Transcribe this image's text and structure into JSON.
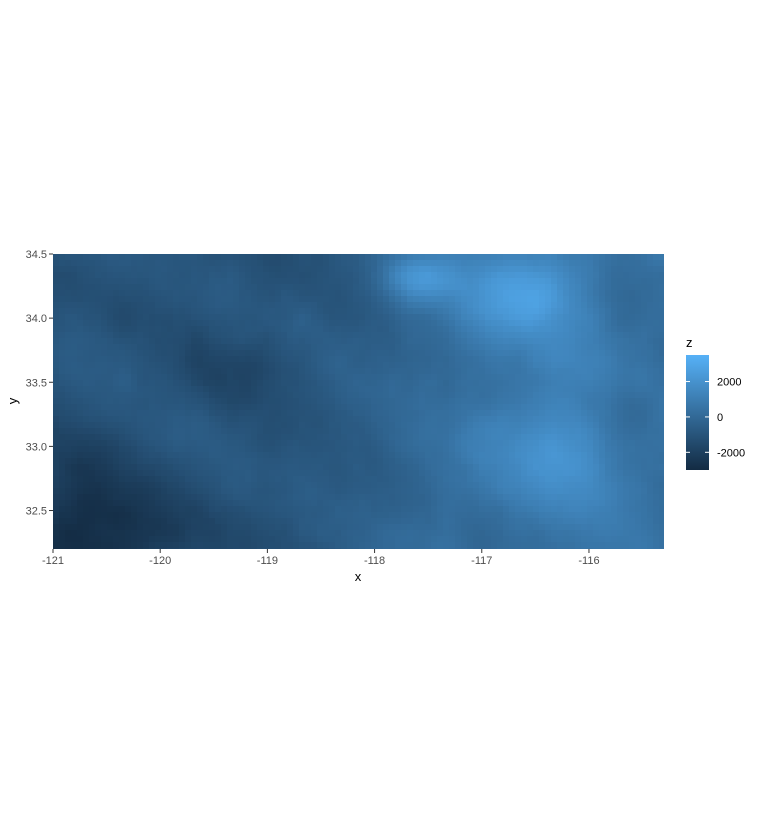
{
  "chart_data": {
    "type": "heatmap",
    "title": "",
    "xlabel": "x",
    "ylabel": "y",
    "xlim": [
      -121,
      -115.3
    ],
    "ylim": [
      32.2,
      34.5
    ],
    "x_ticks": [
      "-121",
      "-120",
      "-119",
      "-118",
      "-117",
      "-116"
    ],
    "y_ticks": [
      "32.5",
      "33.0",
      "33.5",
      "34.0",
      "34.5"
    ],
    "x_tick_values": [
      -121,
      -120,
      -119,
      -118,
      -117,
      -116
    ],
    "y_tick_values": [
      32.5,
      33.0,
      33.5,
      34.0,
      34.5
    ],
    "legend": {
      "title": "z",
      "position": "right",
      "labels": [
        "2000",
        "0",
        "-2000"
      ],
      "values": [
        2000,
        0,
        -2000
      ],
      "range": [
        -3000,
        3500
      ],
      "color_low": "#132b43",
      "color_high": "#56b1f7"
    },
    "description_free_field_grid": false
  }
}
